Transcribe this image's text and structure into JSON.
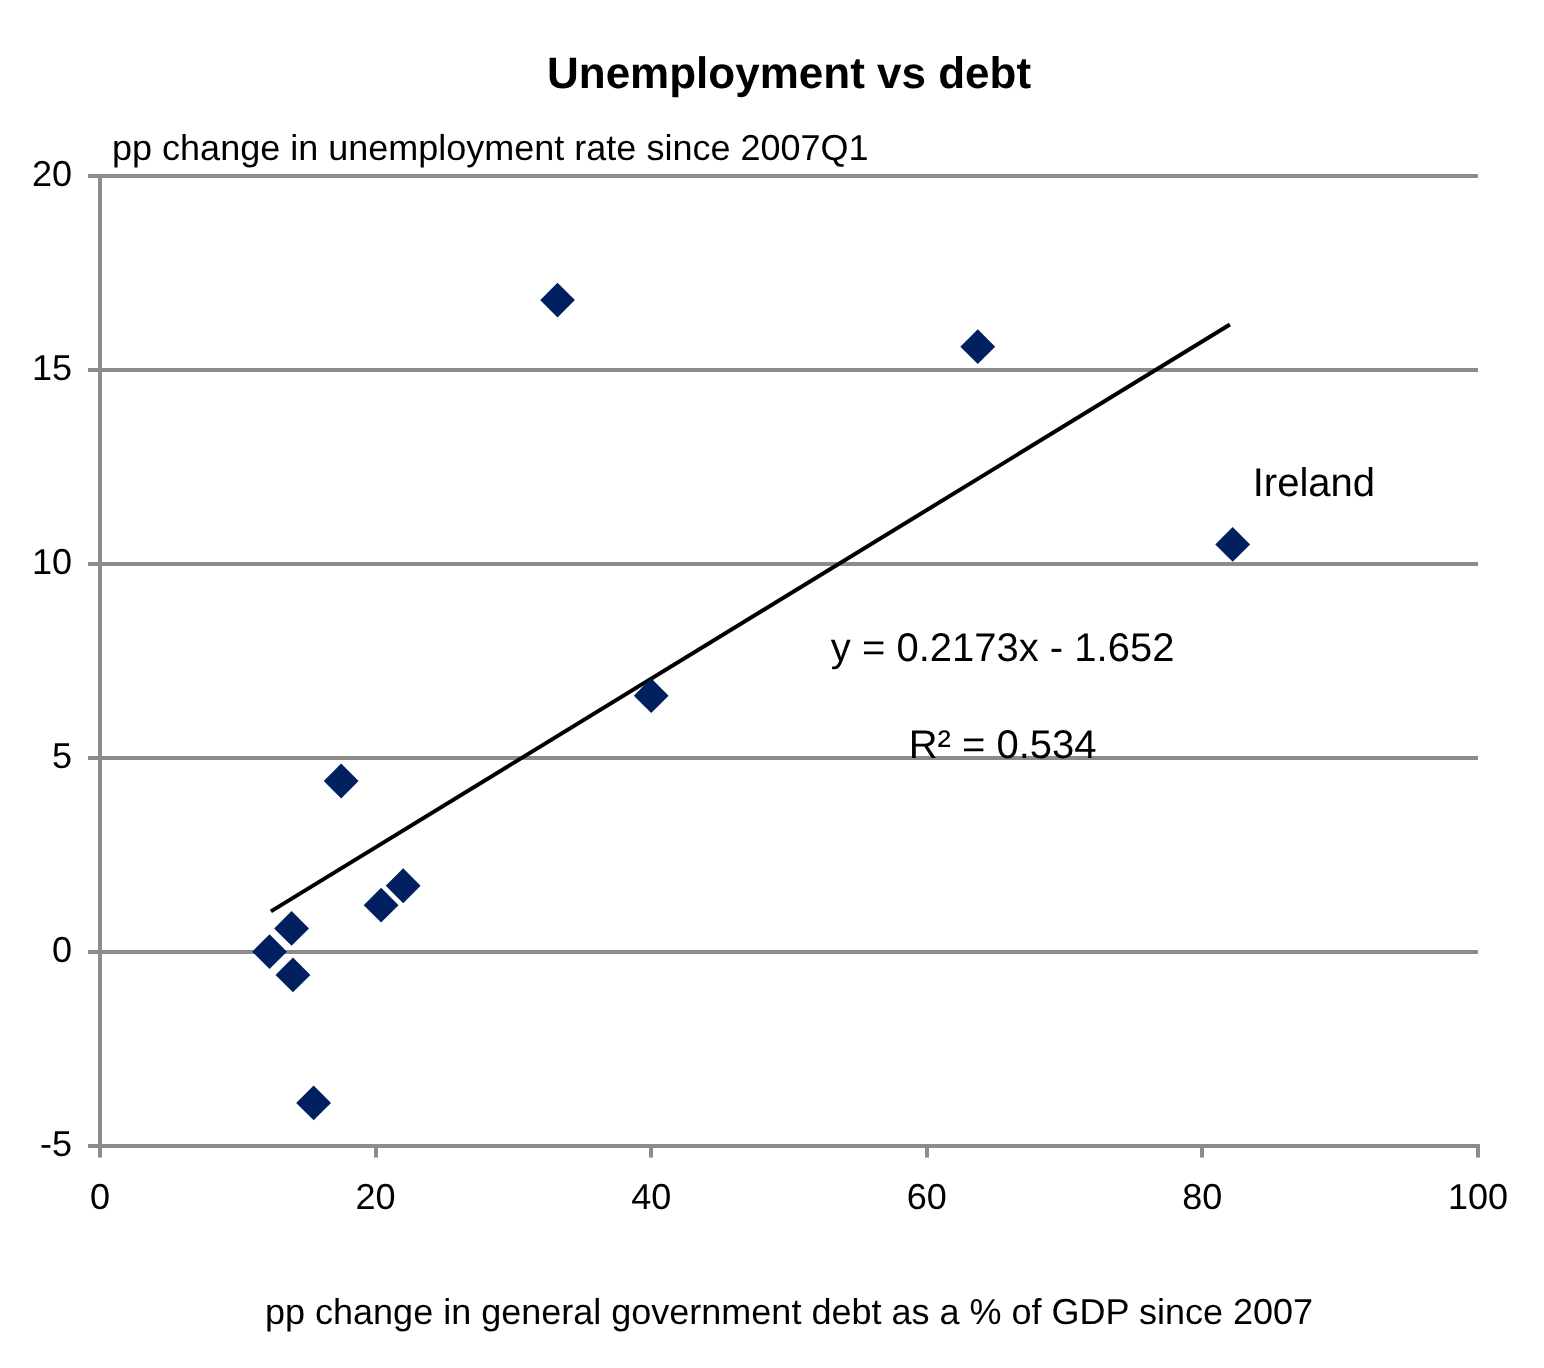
{
  "chart_data": {
    "type": "scatter",
    "title": "Unemployment vs debt",
    "ylabel": "pp change in unemployment rate since 2007Q1",
    "xlabel": "pp change in general government debt as a % of GDP since 2007",
    "series": [
      {
        "marker": "diamond",
        "color": "#002060",
        "x": [
          12.3,
          13.9,
          14.0,
          15.5,
          17.5,
          20.4,
          22.0,
          33.2,
          40.0,
          63.7,
          82.2
        ],
        "values": [
          0,
          0.6,
          -0.6,
          -3.9,
          4.4,
          1.2,
          1.7,
          16.8,
          6.6,
          15.6,
          10.5
        ]
      },
      {
        "type": "line",
        "marker": "none",
        "color": "#000000",
        "x": [
          12.4,
          82.0
        ],
        "values": [
          1.04,
          16.17
        ]
      }
    ],
    "annotations": [
      {
        "text": "Ireland",
        "x": 82.2,
        "y": 10.5
      },
      "y = 0.2173x - 1.652",
      "R² = 0.534"
    ],
    "xlim": [
      0,
      100
    ],
    "xticks": [
      0,
      20,
      40,
      60,
      80,
      100
    ],
    "ylim": [
      -5,
      20
    ],
    "yticks": [
      -5,
      0,
      5,
      10,
      15,
      20
    ],
    "grid": "y",
    "legend": false
  }
}
